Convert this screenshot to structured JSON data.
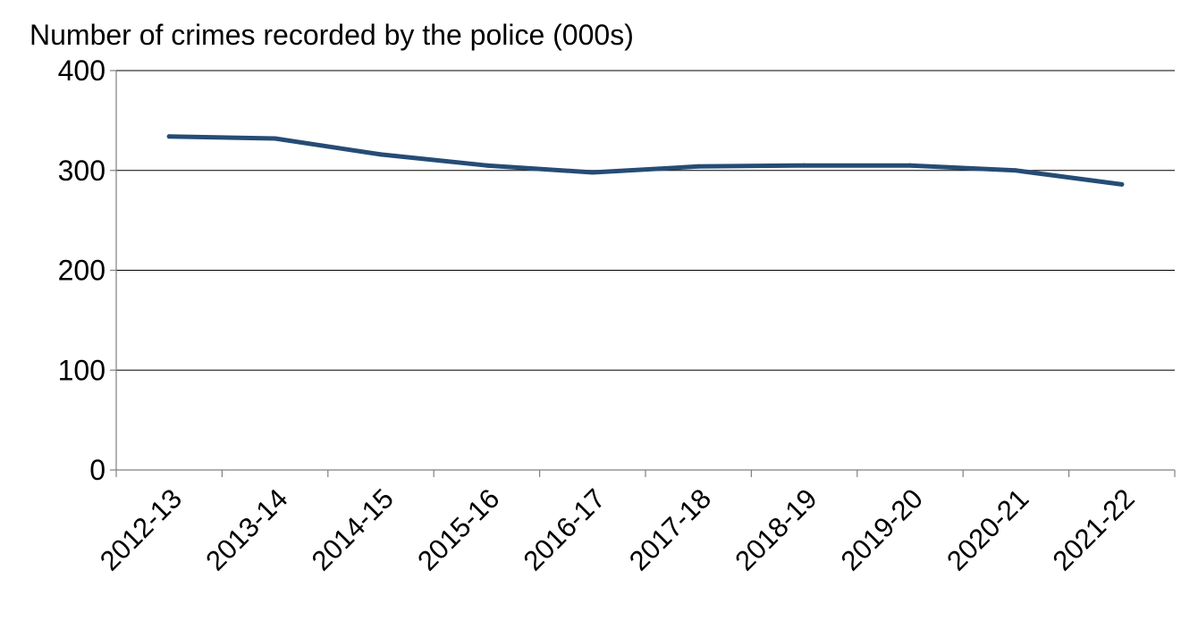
{
  "chart_data": {
    "type": "line",
    "title": "Number of crimes recorded by the police (000s)",
    "xlabel": "",
    "ylabel": "",
    "categories": [
      "2012-13",
      "2013-14",
      "2014-15",
      "2015-16",
      "2016-17",
      "2017-18",
      "2018-19",
      "2019-20",
      "2020-21",
      "2021-22"
    ],
    "series": [
      {
        "values": [
          334,
          332,
          316,
          305,
          298,
          304,
          305,
          305,
          300,
          286
        ],
        "color": "#254c75"
      }
    ],
    "ylim": [
      0,
      400
    ],
    "yticks": [
      0,
      100,
      200,
      300,
      400
    ],
    "grid": true,
    "legend": "none"
  }
}
